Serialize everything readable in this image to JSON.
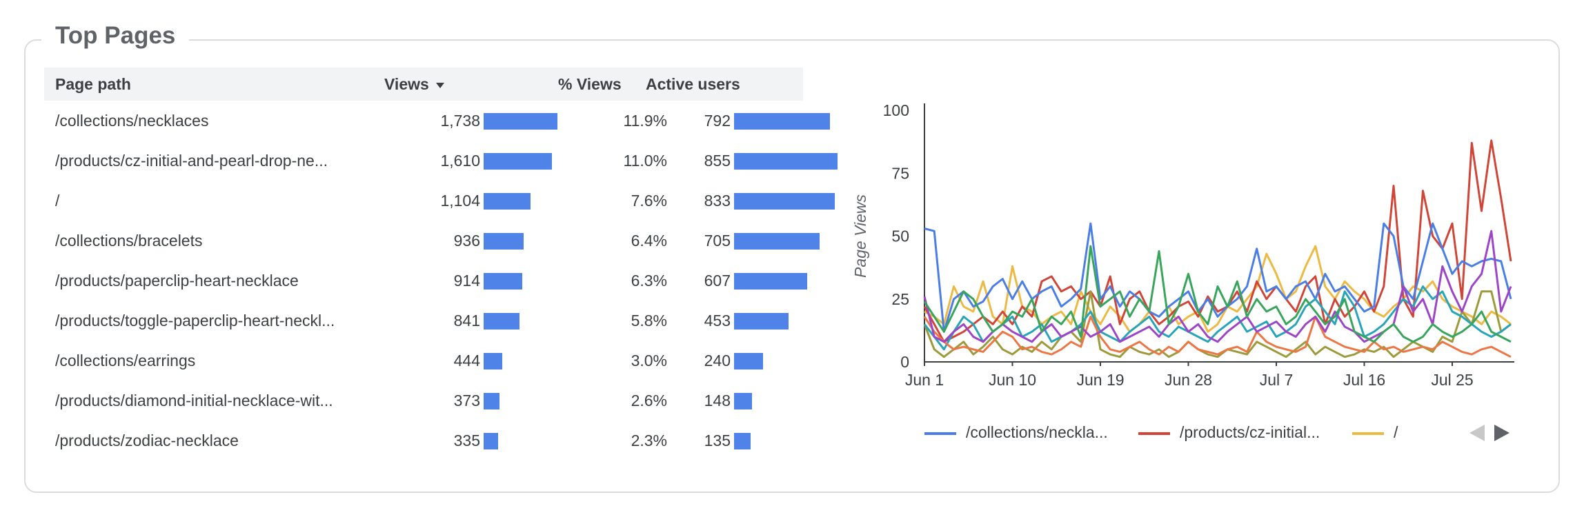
{
  "widget": {
    "title": "Top Pages"
  },
  "table": {
    "columns": [
      "Page path",
      "Views",
      "% Views",
      "Active users"
    ],
    "rows": [
      {
        "path": "/collections/necklaces",
        "views": "1,738",
        "views_n": 1738,
        "pct": "11.9%",
        "users": "792",
        "users_n": 792
      },
      {
        "path": "/products/cz-initial-and-pearl-drop-ne...",
        "views": "1,610",
        "views_n": 1610,
        "pct": "11.0%",
        "users": "855",
        "users_n": 855
      },
      {
        "path": "/",
        "views": "1,104",
        "views_n": 1104,
        "pct": "7.6%",
        "users": "833",
        "users_n": 833
      },
      {
        "path": "/collections/bracelets",
        "views": "936",
        "views_n": 936,
        "pct": "6.4%",
        "users": "705",
        "users_n": 705
      },
      {
        "path": "/products/paperclip-heart-necklace",
        "views": "914",
        "views_n": 914,
        "pct": "6.3%",
        "users": "607",
        "users_n": 607
      },
      {
        "path": "/products/toggle-paperclip-heart-neckl...",
        "views": "841",
        "views_n": 841,
        "pct": "5.8%",
        "users": "453",
        "users_n": 453
      },
      {
        "path": "/collections/earrings",
        "views": "444",
        "views_n": 444,
        "pct": "3.0%",
        "users": "240",
        "users_n": 240
      },
      {
        "path": "/products/diamond-initial-necklace-wit...",
        "views": "373",
        "views_n": 373,
        "pct": "2.6%",
        "users": "148",
        "users_n": 148
      },
      {
        "path": "/products/zodiac-necklace",
        "views": "335",
        "views_n": 335,
        "pct": "2.3%",
        "users": "135",
        "users_n": 135
      }
    ]
  },
  "chart_data": {
    "type": "line",
    "ylabel": "Page Views",
    "ylim": [
      0,
      100
    ],
    "yticks": [
      "0",
      "25",
      "50",
      "75",
      "100"
    ],
    "xtick_labels": [
      "Jun 1",
      "Jun 10",
      "Jun 19",
      "Jun 28",
      "Jul 7",
      "Jul 16",
      "Jul 25"
    ],
    "x_start": "Jun 1",
    "x_end": "Jul 31",
    "series": [
      {
        "name": "/collections/neckla...",
        "color": "#4a7ee6",
        "values": [
          53,
          52,
          12,
          25,
          28,
          22,
          24,
          30,
          33,
          25,
          32,
          25,
          28,
          30,
          22,
          25,
          29,
          55,
          25,
          30,
          22,
          28,
          25,
          20,
          18,
          22,
          25,
          28,
          20,
          25,
          18,
          22,
          25,
          30,
          45,
          28,
          30,
          25,
          30,
          32,
          25,
          35,
          28,
          30,
          25,
          20,
          22,
          55,
          50,
          30,
          25,
          40,
          55,
          45,
          35,
          40,
          38,
          40,
          41,
          40,
          25
        ]
      },
      {
        "name": "/products/cz-initial...",
        "color": "#d04537",
        "values": [
          22,
          15,
          8,
          10,
          12,
          15,
          18,
          15,
          20,
          15,
          22,
          18,
          32,
          34,
          28,
          30,
          25,
          28,
          22,
          34,
          15,
          25,
          28,
          20,
          15,
          18,
          22,
          24,
          18,
          26,
          20,
          22,
          28,
          20,
          32,
          25,
          30,
          25,
          20,
          30,
          34,
          15,
          25,
          18,
          22,
          28,
          20,
          30,
          70,
          25,
          18,
          68,
          50,
          45,
          55,
          25,
          87,
          60,
          88,
          65,
          40
        ]
      },
      {
        "name": "/",
        "color": "#ecb942",
        "values": [
          20,
          18,
          15,
          30,
          22,
          20,
          32,
          18,
          15,
          38,
          22,
          20,
          15,
          18,
          20,
          15,
          28,
          20,
          15,
          22,
          18,
          12,
          15,
          20,
          18,
          22,
          15,
          18,
          20,
          12,
          15,
          22,
          20,
          25,
          30,
          43,
          35,
          25,
          28,
          38,
          46,
          30,
          25,
          32,
          28,
          25,
          20,
          18,
          22,
          25,
          30,
          28,
          32,
          25,
          22,
          20,
          18,
          15,
          20,
          18,
          15
        ]
      }
    ],
    "extra_series": [
      {
        "color": "#37a55b",
        "values": [
          24,
          18,
          12,
          20,
          28,
          25,
          18,
          12,
          15,
          20,
          18,
          25,
          12,
          18,
          15,
          20,
          10,
          46,
          22,
          25,
          28,
          18,
          25,
          20,
          44,
          15,
          22,
          35,
          20,
          15,
          30,
          22,
          32,
          18,
          25,
          20,
          22,
          15,
          18,
          25,
          20,
          15,
          18,
          25,
          12,
          10,
          8,
          12,
          15,
          10,
          8,
          10,
          15,
          12,
          10,
          12,
          15,
          20,
          12,
          10,
          8
        ]
      },
      {
        "color": "#9d45c7",
        "values": [
          26,
          10,
          8,
          12,
          15,
          10,
          8,
          12,
          15,
          12,
          10,
          8,
          12,
          15,
          10,
          12,
          14,
          10,
          12,
          15,
          8,
          10,
          12,
          14,
          10,
          15,
          18,
          12,
          15,
          10,
          8,
          12,
          15,
          18,
          12,
          14,
          16,
          12,
          10,
          15,
          18,
          12,
          20,
          14,
          12,
          8,
          10,
          12,
          15,
          30,
          20,
          25,
          15,
          38,
          28,
          20,
          30,
          35,
          52,
          20,
          30
        ]
      },
      {
        "color": "#ec7644",
        "values": [
          18,
          12,
          8,
          5,
          6,
          5,
          4,
          8,
          12,
          10,
          5,
          6,
          4,
          3,
          5,
          8,
          6,
          18,
          10,
          5,
          4,
          6,
          8,
          5,
          3,
          6,
          4,
          8,
          5,
          4,
          3,
          5,
          6,
          4,
          12,
          8,
          6,
          5,
          4,
          6,
          18,
          10,
          8,
          6,
          5,
          4,
          8,
          5,
          6,
          4,
          5,
          6,
          5,
          8,
          6,
          4,
          3,
          5,
          6,
          4,
          2
        ]
      },
      {
        "color": "#28a4b8",
        "values": [
          15,
          10,
          5,
          12,
          18,
          15,
          8,
          12,
          15,
          18,
          10,
          12,
          15,
          8,
          10,
          12,
          15,
          20,
          12,
          10,
          8,
          12,
          15,
          18,
          12,
          10,
          14,
          12,
          10,
          8,
          12,
          15,
          18,
          12,
          14,
          16,
          10,
          12,
          15,
          22,
          25,
          20,
          15,
          28,
          22,
          10,
          12,
          15,
          20,
          25,
          22,
          30,
          25,
          28,
          20,
          18,
          15,
          12,
          10,
          12,
          15
        ]
      },
      {
        "color": "#9c9a3a",
        "values": [
          15,
          5,
          2,
          5,
          8,
          3,
          6,
          10,
          5,
          3,
          6,
          4,
          8,
          5,
          10,
          12,
          8,
          28,
          5,
          3,
          2,
          6,
          4,
          3,
          5,
          2,
          4,
          8,
          5,
          3,
          2,
          5,
          4,
          3,
          8,
          6,
          4,
          2,
          5,
          8,
          3,
          6,
          4,
          2,
          3,
          5,
          4,
          6,
          2,
          5,
          8,
          6,
          4,
          10,
          8,
          20,
          15,
          28,
          28,
          12,
          15
        ]
      }
    ],
    "legend_position": "bottom"
  },
  "legend_nav": {
    "prev": "previous-page",
    "next": "next-page"
  }
}
